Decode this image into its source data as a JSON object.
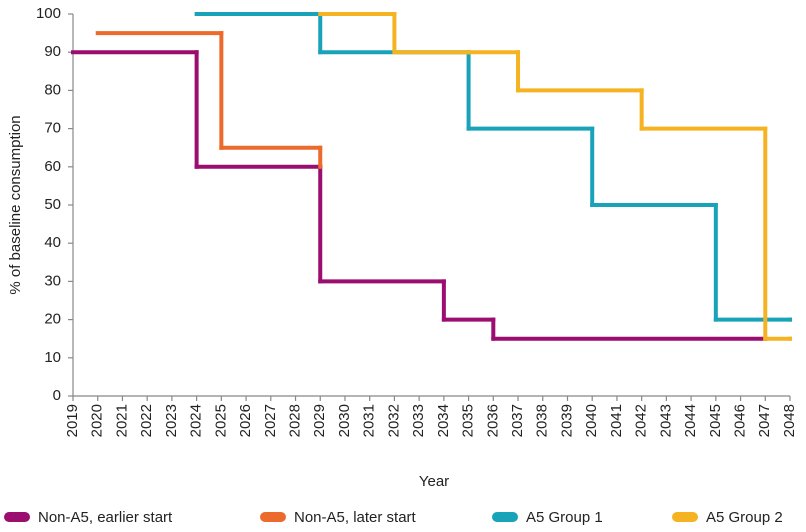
{
  "chart_data": {
    "type": "step",
    "x_label": "Year",
    "y_label": "% of baseline consumption",
    "xlim": [
      2019,
      2048
    ],
    "xticks": [
      2019,
      2020,
      2021,
      2022,
      2023,
      2024,
      2025,
      2026,
      2027,
      2028,
      2029,
      2030,
      2031,
      2032,
      2033,
      2034,
      2035,
      2036,
      2037,
      2038,
      2039,
      2040,
      2041,
      2042,
      2043,
      2044,
      2045,
      2046,
      2047,
      2048
    ],
    "ylim": [
      0,
      100
    ],
    "yticks": [
      0,
      10,
      20,
      30,
      40,
      50,
      60,
      70,
      80,
      90,
      100
    ],
    "legend": "bottom",
    "series": [
      {
        "name": "Non-A5, earlier start",
        "color": "#9b0d6f",
        "x": [
          2019,
          2024,
          2029,
          2034,
          2036,
          2047
        ],
        "values": [
          90,
          60,
          30,
          20,
          15,
          15
        ]
      },
      {
        "name": "Non-A5, later start",
        "color": "#ec6a2c",
        "x": [
          2020,
          2025,
          2029
        ],
        "values": [
          95,
          65,
          60
        ]
      },
      {
        "name": "A5 Group 1",
        "color": "#18a3b9",
        "x": [
          2024,
          2029,
          2035,
          2040,
          2045,
          2048
        ],
        "values": [
          100,
          90,
          70,
          50,
          20,
          20
        ]
      },
      {
        "name": "A5 Group 2",
        "color": "#f6b321",
        "x": [
          2029,
          2032,
          2035,
          2037,
          2042,
          2047,
          2048
        ],
        "values": [
          100,
          90,
          90,
          80,
          70,
          15,
          15
        ]
      }
    ]
  }
}
